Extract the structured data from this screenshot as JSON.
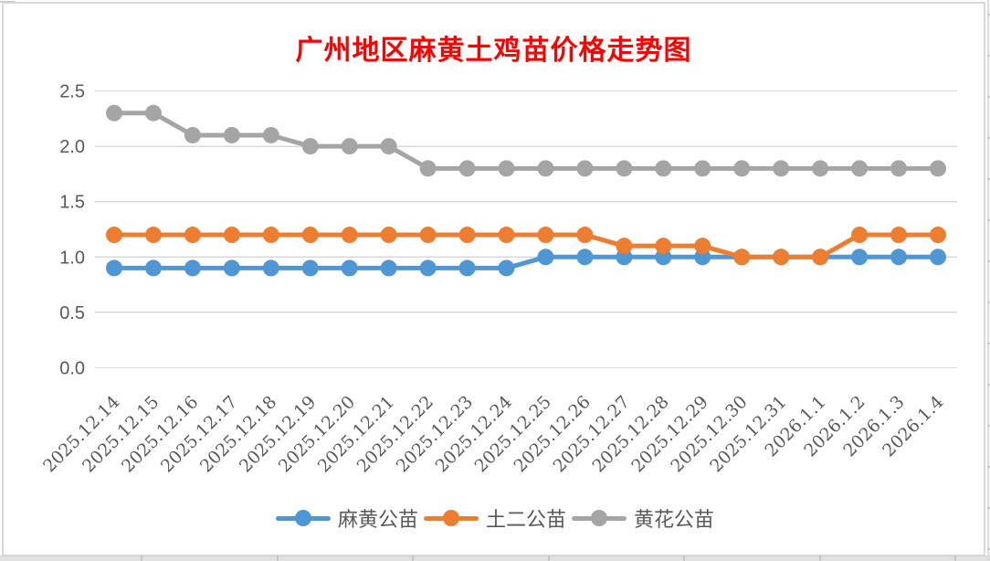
{
  "chart_data": {
    "type": "line",
    "title": "广州地区麻黄土鸡苗价格走势图",
    "categories": [
      "2025.12.14",
      "2025.12.15",
      "2025.12.16",
      "2025.12.17",
      "2025.12.18",
      "2025.12.19",
      "2025.12.20",
      "2025.12.21",
      "2025.12.22",
      "2025.12.23",
      "2025.12.24",
      "2025.12.25",
      "2025.12.26",
      "2025.12.27",
      "2025.12.28",
      "2025.12.29",
      "2025.12.30",
      "2025.12.31",
      "2026.1.1",
      "2026.1.2",
      "2026.1.3",
      "2026.1.4"
    ],
    "series": [
      {
        "name": "麻黄公苗",
        "color": "#4F96D5",
        "values": [
          0.9,
          0.9,
          0.9,
          0.9,
          0.9,
          0.9,
          0.9,
          0.9,
          0.9,
          0.9,
          0.9,
          1.0,
          1.0,
          1.0,
          1.0,
          1.0,
          1.0,
          1.0,
          1.0,
          1.0,
          1.0,
          1.0
        ]
      },
      {
        "name": "土二公苗",
        "color": "#ED7D31",
        "values": [
          1.2,
          1.2,
          1.2,
          1.2,
          1.2,
          1.2,
          1.2,
          1.2,
          1.2,
          1.2,
          1.2,
          1.2,
          1.2,
          1.1,
          1.1,
          1.1,
          1.0,
          1.0,
          1.0,
          1.2,
          1.2,
          1.2
        ]
      },
      {
        "name": "黄花公苗",
        "color": "#A5A5A5",
        "values": [
          2.3,
          2.3,
          2.1,
          2.1,
          2.1,
          2.0,
          2.0,
          2.0,
          1.8,
          1.8,
          1.8,
          1.8,
          1.8,
          1.8,
          1.8,
          1.8,
          1.8,
          1.8,
          1.8,
          1.8,
          1.8,
          1.8
        ]
      }
    ],
    "yticks": [
      "0.0",
      "0.5",
      "1.0",
      "1.5",
      "2.0",
      "2.5"
    ],
    "ylim": [
      0,
      2.5
    ],
    "grid": true,
    "legend_position": "bottom",
    "colors": {
      "title": "#FF0000",
      "axis_labels": "#595959",
      "gridline": "#D9D9D9",
      "chart_border": "#D9D9D9",
      "background": "#FFFFFF"
    }
  }
}
